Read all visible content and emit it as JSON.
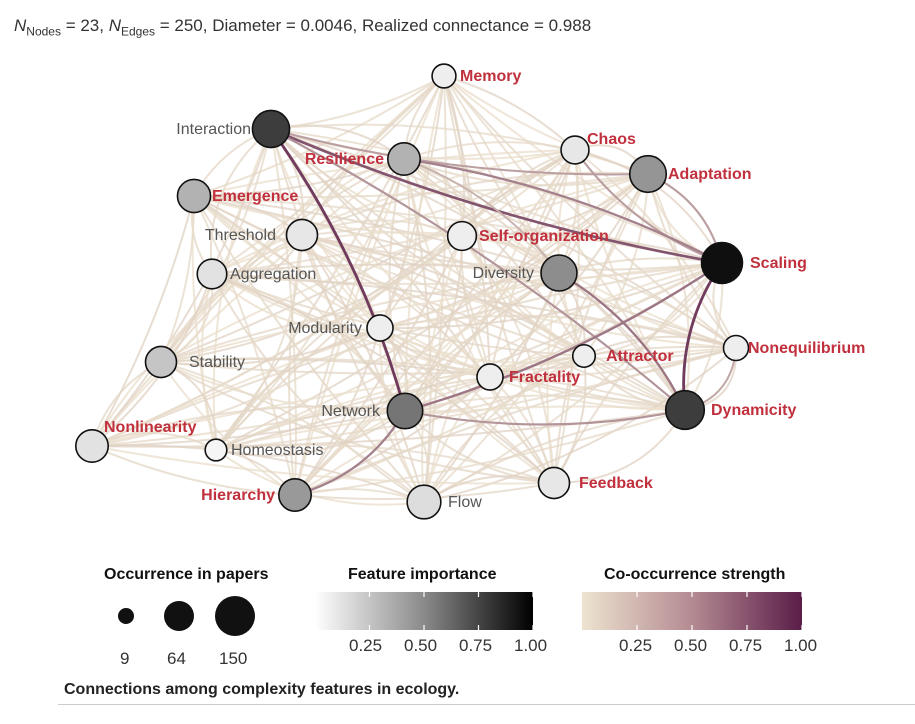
{
  "stats": {
    "n_nodes_label": "N",
    "n_nodes_sub": "Nodes",
    "n_nodes_value": " = 23, ",
    "n_edges_label": "N",
    "n_edges_sub": "Edges",
    "rest": " = 250, Diameter = 0.0046, Realized connectance = 0.988"
  },
  "colors": {
    "red_label": "#c0303d",
    "gray_label": "#555555",
    "edge_low": "#ede3cf",
    "edge_high": "#5a1d48"
  },
  "nodes": [
    {
      "id": "Memory",
      "label": "Memory",
      "red": true,
      "importance": 0.05,
      "occurrence": 20
    },
    {
      "id": "Interaction",
      "label": "Interaction",
      "red": false,
      "importance": 0.78,
      "occurrence": 110
    },
    {
      "id": "Resilience",
      "label": "Resilience",
      "red": true,
      "importance": 0.3,
      "occurrence": 70
    },
    {
      "id": "Chaos",
      "label": "Chaos",
      "red": true,
      "importance": 0.08,
      "occurrence": 40
    },
    {
      "id": "Adaptation",
      "label": "Adaptation",
      "red": true,
      "importance": 0.42,
      "occurrence": 105
    },
    {
      "id": "Emergence",
      "label": "Emergence",
      "red": true,
      "importance": 0.3,
      "occurrence": 75
    },
    {
      "id": "Threshold",
      "label": "Threshold",
      "red": false,
      "importance": 0.08,
      "occurrence": 60
    },
    {
      "id": "Self-organization",
      "label": "Self-organization",
      "red": true,
      "importance": 0.05,
      "occurrence": 45
    },
    {
      "id": "Scaling",
      "label": "Scaling",
      "red": true,
      "importance": 0.97,
      "occurrence": 150
    },
    {
      "id": "Aggregation",
      "label": "Aggregation",
      "red": false,
      "importance": 0.1,
      "occurrence": 50
    },
    {
      "id": "Diversity",
      "label": "Diversity",
      "red": false,
      "importance": 0.45,
      "occurrence": 100
    },
    {
      "id": "Modularity",
      "label": "Modularity",
      "red": false,
      "importance": 0.05,
      "occurrence": 30
    },
    {
      "id": "Stability",
      "label": "Stability",
      "red": false,
      "importance": 0.22,
      "occurrence": 60
    },
    {
      "id": "Attractor",
      "label": "Attractor",
      "red": true,
      "importance": 0.05,
      "occurrence": 15
    },
    {
      "id": "Nonequilibrium",
      "label": "Nonequilibrium",
      "red": true,
      "importance": 0.05,
      "occurrence": 25
    },
    {
      "id": "Fractality",
      "label": "Fractality",
      "red": true,
      "importance": 0.05,
      "occurrence": 30
    },
    {
      "id": "Network",
      "label": "Network",
      "red": false,
      "importance": 0.55,
      "occurrence": 95
    },
    {
      "id": "Dynamicity",
      "label": "Dynamicity",
      "red": true,
      "importance": 0.78,
      "occurrence": 125
    },
    {
      "id": "Nonlinearity",
      "label": "Nonlinearity",
      "red": true,
      "importance": 0.1,
      "occurrence": 70
    },
    {
      "id": "Homeostasis",
      "label": "Homeostasis",
      "red": false,
      "importance": 0.02,
      "occurrence": 12
    },
    {
      "id": "Hierarchy",
      "label": "Hierarchy",
      "red": true,
      "importance": 0.4,
      "occurrence": 70
    },
    {
      "id": "Flow",
      "label": "Flow",
      "red": false,
      "importance": 0.12,
      "occurrence": 80
    },
    {
      "id": "Feedback",
      "label": "Feedback",
      "red": true,
      "importance": 0.08,
      "occurrence": 60
    }
  ],
  "strong_edges": [
    {
      "a": "Interaction",
      "b": "Scaling",
      "strength": 0.72
    },
    {
      "a": "Interaction",
      "b": "Network",
      "strength": 0.85
    },
    {
      "a": "Interaction",
      "b": "Adaptation",
      "strength": 0.35
    },
    {
      "a": "Interaction",
      "b": "Dynamicity",
      "strength": 0.4
    },
    {
      "a": "Scaling",
      "b": "Dynamicity",
      "strength": 0.85
    },
    {
      "a": "Scaling",
      "b": "Network",
      "strength": 0.55
    },
    {
      "a": "Scaling",
      "b": "Adaptation",
      "strength": 0.35
    },
    {
      "a": "Scaling",
      "b": "Chaos",
      "strength": 0.35
    },
    {
      "a": "Scaling",
      "b": "Resilience",
      "strength": 0.5
    },
    {
      "a": "Network",
      "b": "Hierarchy",
      "strength": 0.5
    },
    {
      "a": "Network",
      "b": "Dynamicity",
      "strength": 0.4
    },
    {
      "a": "Diversity",
      "b": "Dynamicity",
      "strength": 0.55
    },
    {
      "a": "Diversity",
      "b": "Resilience",
      "strength": 0.25
    },
    {
      "a": "Nonequilibrium",
      "b": "Dynamicity",
      "strength": 0.3
    }
  ],
  "legend": {
    "occurrence": {
      "title": "Occurrence in papers",
      "values": [
        9,
        64,
        150
      ]
    },
    "importance": {
      "title": "Feature importance",
      "ticks": [
        "0.25",
        "0.50",
        "0.75",
        "1.00"
      ]
    },
    "cooccurrence": {
      "title": "Co-occurrence strength",
      "ticks": [
        "0.25",
        "0.50",
        "0.75",
        "1.00"
      ]
    }
  },
  "caption": "Connections among complexity features in ecology."
}
